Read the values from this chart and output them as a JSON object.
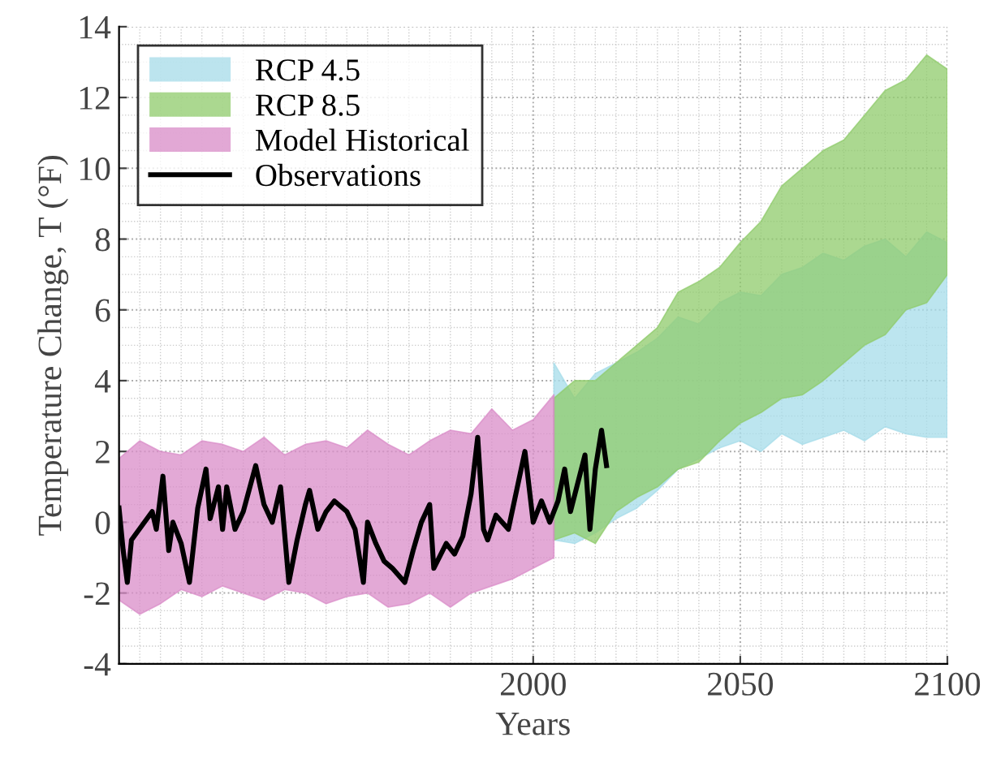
{
  "chart_data": {
    "type": "area",
    "xlabel": "Years",
    "ylabel": "Temperature Change, T (°F)",
    "xlim": [
      1900,
      2100
    ],
    "xticks": [
      2000,
      2050,
      2100
    ],
    "ylim": [
      -4,
      14
    ],
    "yticks": [
      -4,
      -2,
      0,
      2,
      4,
      6,
      8,
      10,
      12,
      14
    ],
    "grid": true,
    "legend": "top left",
    "series": [
      {
        "name": "RCP 4.5",
        "color": "#a6dce9",
        "x": [
          2005,
          2010,
          2015,
          2020,
          2025,
          2030,
          2035,
          2040,
          2045,
          2050,
          2055,
          2060,
          2065,
          2070,
          2075,
          2080,
          2085,
          2090,
          2095,
          2100
        ],
        "values": [
          null,
          null,
          null,
          null,
          null,
          null,
          null,
          null,
          null,
          null,
          null,
          null,
          null,
          null,
          null,
          null,
          null,
          null,
          null,
          null
        ],
        "lower": [
          -0.5,
          -0.6,
          -0.3,
          0.1,
          0.4,
          0.9,
          1.5,
          1.8,
          2.1,
          2.3,
          2.0,
          2.5,
          2.2,
          2.4,
          2.6,
          2.3,
          2.7,
          2.5,
          2.4,
          2.4
        ],
        "upper": [
          4.5,
          3.5,
          4.2,
          4.5,
          4.8,
          5.2,
          5.8,
          5.6,
          6.2,
          6.5,
          6.4,
          7.0,
          7.2,
          7.6,
          7.4,
          7.8,
          8.0,
          7.5,
          8.2,
          7.9
        ]
      },
      {
        "name": "RCP 8.5",
        "color": "#8fcb6b",
        "x": [
          2005,
          2010,
          2015,
          2020,
          2025,
          2030,
          2035,
          2040,
          2045,
          2050,
          2055,
          2060,
          2065,
          2070,
          2075,
          2080,
          2085,
          2090,
          2095,
          2100
        ],
        "values": [
          null,
          null,
          null,
          null,
          null,
          null,
          null,
          null,
          null,
          null,
          null,
          null,
          null,
          null,
          null,
          null,
          null,
          null,
          null,
          null
        ],
        "lower": [
          -0.5,
          -0.3,
          -0.6,
          0.3,
          0.7,
          1.0,
          1.5,
          1.7,
          2.3,
          2.8,
          3.1,
          3.5,
          3.6,
          4.0,
          4.5,
          5.0,
          5.3,
          6.0,
          6.2,
          7.0
        ],
        "upper": [
          3.5,
          4.0,
          4.0,
          4.5,
          5.0,
          5.5,
          6.5,
          6.8,
          7.2,
          7.9,
          8.5,
          9.5,
          10.0,
          10.5,
          10.8,
          11.5,
          12.2,
          12.5,
          13.2,
          12.8
        ]
      },
      {
        "name": "Model Historical",
        "color": "#d98cc8",
        "x": [
          1900,
          1905,
          1910,
          1915,
          1920,
          1925,
          1930,
          1935,
          1940,
          1945,
          1950,
          1955,
          1960,
          1965,
          1970,
          1975,
          1980,
          1985,
          1990,
          1995,
          2000,
          2005
        ],
        "values": [
          null,
          null,
          null,
          null,
          null,
          null,
          null,
          null,
          null,
          null,
          null,
          null,
          null,
          null,
          null,
          null,
          null,
          null,
          null,
          null,
          null,
          null
        ],
        "lower": [
          -2.2,
          -2.6,
          -2.3,
          -1.9,
          -2.1,
          -1.8,
          -2.0,
          -2.2,
          -1.9,
          -2.0,
          -2.3,
          -2.1,
          -2.0,
          -2.4,
          -2.3,
          -2.0,
          -2.4,
          -2.0,
          -1.8,
          -1.6,
          -1.3,
          -1.0
        ],
        "upper": [
          1.8,
          2.3,
          2.0,
          1.9,
          2.3,
          2.2,
          2.0,
          2.4,
          1.9,
          2.2,
          2.3,
          2.1,
          2.6,
          2.2,
          1.9,
          2.3,
          2.6,
          2.5,
          3.2,
          2.6,
          2.9,
          3.6
        ]
      },
      {
        "name": "Observations",
        "type": "line",
        "color": "#000000",
        "x": [
          1900,
          1901,
          1902,
          1903,
          1908,
          1909,
          1910.6,
          1912,
          1913,
          1915,
          1917,
          1919,
          1921,
          1922,
          1924,
          1925,
          1926,
          1928,
          1930,
          1933,
          1935,
          1937,
          1939,
          1941,
          1943,
          1945,
          1946,
          1948,
          1950,
          1952,
          1955,
          1957,
          1959,
          1960,
          1962,
          1964,
          1966,
          1969,
          1971,
          1973,
          1975,
          1976,
          1979,
          1981,
          1983,
          1985,
          1986.6,
          1988,
          1989,
          1991,
          1994,
          1998,
          2000,
          2002,
          2004,
          2006,
          2007.6,
          2009,
          2012.5,
          2013.7,
          2015,
          2016.5,
          2017.7
        ],
        "values": [
          0.4,
          -0.8,
          -1.7,
          -0.5,
          0.3,
          -0.2,
          1.3,
          -0.8,
          0.0,
          -0.6,
          -1.7,
          0.4,
          1.5,
          0.1,
          1.0,
          -0.2,
          1.0,
          -0.2,
          0.3,
          1.6,
          0.5,
          0.0,
          1.0,
          -1.7,
          -0.5,
          0.5,
          0.9,
          -0.2,
          0.3,
          0.6,
          0.3,
          -0.2,
          -1.7,
          0.0,
          -0.6,
          -1.1,
          -1.3,
          -1.7,
          -0.8,
          0.0,
          0.5,
          -1.3,
          -0.6,
          -0.9,
          -0.4,
          0.8,
          2.4,
          -0.2,
          -0.5,
          0.2,
          -0.2,
          2.0,
          0.0,
          0.6,
          0.0,
          0.6,
          1.5,
          0.3,
          1.9,
          -0.2,
          1.5,
          2.6,
          1.6
        ]
      }
    ]
  }
}
